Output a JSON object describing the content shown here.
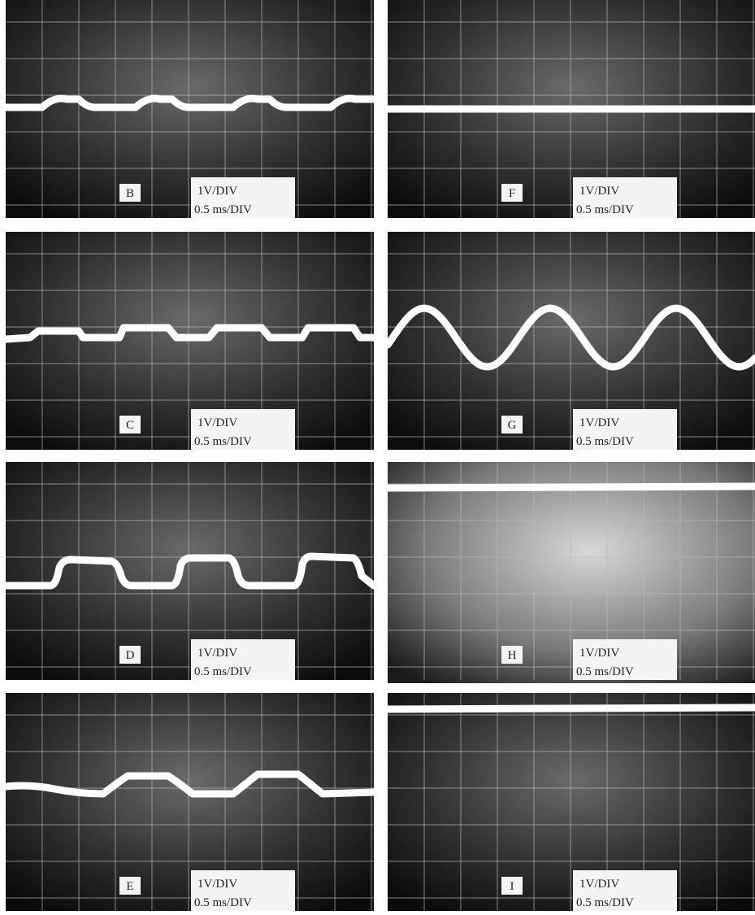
{
  "panels": [
    {
      "label": "B",
      "vdiv": "1V/DIV",
      "tdiv": "0.5 ms/DIV"
    },
    {
      "label": "C",
      "vdiv": "1V/DIV",
      "tdiv": "0.5 ms/DIV"
    },
    {
      "label": "D",
      "vdiv": "1V/DIV",
      "tdiv": "0.5 ms/DIV"
    },
    {
      "label": "E",
      "vdiv": "1V/DIV",
      "tdiv": "0.5 ms/DIV"
    },
    {
      "label": "F",
      "vdiv": "1V/DIV",
      "tdiv": "0.5 ms/DIV"
    },
    {
      "label": "G",
      "vdiv": "1V/DIV",
      "tdiv": "0.5 ms/DIV"
    },
    {
      "label": "H",
      "vdiv": "1V/DIV",
      "tdiv": "0.5 ms/DIV"
    },
    {
      "label": "I",
      "vdiv": "1V/DIV",
      "tdiv": "0.5 ms/DIV"
    }
  ]
}
